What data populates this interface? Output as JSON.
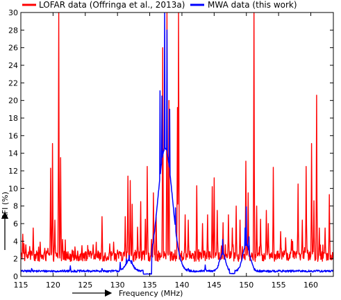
{
  "chart_data": {
    "type": "line",
    "title": "",
    "xlabel": "Frequency (MHz)",
    "ylabel": "RFI (%)",
    "xlim": [
      115,
      163.5
    ],
    "ylim": [
      0,
      30
    ],
    "grid": false,
    "legend_position": "top",
    "x_ticks": [
      115,
      120,
      125,
      130,
      135,
      140,
      145,
      150,
      155,
      160
    ],
    "y_ticks": [
      0,
      2,
      4,
      6,
      8,
      10,
      12,
      14,
      16,
      18,
      20,
      22,
      24,
      26,
      28,
      30
    ],
    "series": [
      {
        "name": "LOFAR data (Offringa et al., 2013a)",
        "color": "#ff0000",
        "baseline": 2.3,
        "noise": 0.6,
        "spikes": [
          {
            "x": 115.3,
            "y": 4.8
          },
          {
            "x": 115.8,
            "y": 3.6
          },
          {
            "x": 116.4,
            "y": 3.4
          },
          {
            "x": 116.9,
            "y": 5.5
          },
          {
            "x": 118.0,
            "y": 3.9
          },
          {
            "x": 119.2,
            "y": 3.2
          },
          {
            "x": 119.6,
            "y": 12.3
          },
          {
            "x": 119.9,
            "y": 15.1
          },
          {
            "x": 120.3,
            "y": 6.4
          },
          {
            "x": 120.9,
            "y": 30.0
          },
          {
            "x": 121.2,
            "y": 13.5
          },
          {
            "x": 121.5,
            "y": 4.2
          },
          {
            "x": 123.0,
            "y": 3.0
          },
          {
            "x": 124.5,
            "y": 3.5
          },
          {
            "x": 125.5,
            "y": 3.0
          },
          {
            "x": 126.2,
            "y": 3.6
          },
          {
            "x": 127.6,
            "y": 6.8
          },
          {
            "x": 128.8,
            "y": 3.7
          },
          {
            "x": 129.4,
            "y": 3.9
          },
          {
            "x": 130.0,
            "y": 3.0
          },
          {
            "x": 131.2,
            "y": 6.8
          },
          {
            "x": 131.6,
            "y": 11.4
          },
          {
            "x": 132.0,
            "y": 10.9
          },
          {
            "x": 132.3,
            "y": 8.2
          },
          {
            "x": 133.1,
            "y": 5.6
          },
          {
            "x": 133.6,
            "y": 8.5
          },
          {
            "x": 134.3,
            "y": 6.5
          },
          {
            "x": 134.6,
            "y": 12.5
          },
          {
            "x": 135.3,
            "y": 4.2
          },
          {
            "x": 135.6,
            "y": 9.5
          },
          {
            "x": 136.0,
            "y": 7.0
          },
          {
            "x": 137.0,
            "y": 26.0
          },
          {
            "x": 137.7,
            "y": 30.0
          },
          {
            "x": 138.0,
            "y": 20.0
          },
          {
            "x": 139.3,
            "y": 19.2
          },
          {
            "x": 139.5,
            "y": 30.0
          },
          {
            "x": 140.5,
            "y": 7.0
          },
          {
            "x": 141.0,
            "y": 6.4
          },
          {
            "x": 142.3,
            "y": 10.3
          },
          {
            "x": 143.2,
            "y": 6.0
          },
          {
            "x": 144.0,
            "y": 7.0
          },
          {
            "x": 144.7,
            "y": 10.2
          },
          {
            "x": 145.0,
            "y": 11.2
          },
          {
            "x": 145.5,
            "y": 7.5
          },
          {
            "x": 146.4,
            "y": 6.1
          },
          {
            "x": 147.2,
            "y": 7.0
          },
          {
            "x": 147.8,
            "y": 5.5
          },
          {
            "x": 148.4,
            "y": 8.0
          },
          {
            "x": 149.0,
            "y": 6.4
          },
          {
            "x": 149.9,
            "y": 13.1
          },
          {
            "x": 150.3,
            "y": 9.5
          },
          {
            "x": 151.2,
            "y": 30.0
          },
          {
            "x": 151.6,
            "y": 8.0
          },
          {
            "x": 152.2,
            "y": 6.5
          },
          {
            "x": 153.1,
            "y": 7.5
          },
          {
            "x": 153.4,
            "y": 6.0
          },
          {
            "x": 154.2,
            "y": 12.4
          },
          {
            "x": 155.3,
            "y": 5.1
          },
          {
            "x": 156.1,
            "y": 4.4
          },
          {
            "x": 157.0,
            "y": 4.2
          },
          {
            "x": 158.0,
            "y": 10.5
          },
          {
            "x": 158.7,
            "y": 6.4
          },
          {
            "x": 159.3,
            "y": 12.5
          },
          {
            "x": 160.1,
            "y": 15.1
          },
          {
            "x": 160.5,
            "y": 8.6
          },
          {
            "x": 160.9,
            "y": 20.6
          },
          {
            "x": 161.3,
            "y": 5.5
          },
          {
            "x": 162.2,
            "y": 5.5
          },
          {
            "x": 162.9,
            "y": 9.3
          }
        ]
      },
      {
        "name": "MWA data (this work)",
        "color": "#0000ff",
        "baseline": 0.6,
        "noise": 0.12,
        "spikes": [
          {
            "x": 116.7,
            "y": 0.9
          },
          {
            "x": 122.7,
            "y": 1.2
          },
          {
            "x": 127.6,
            "y": 0.9
          },
          {
            "x": 130.4,
            "y": 1.6
          },
          {
            "x": 131.4,
            "y": 2.0
          },
          {
            "x": 131.8,
            "y": 2.4
          },
          {
            "x": 132.2,
            "y": 1.8
          },
          {
            "x": 136.6,
            "y": 21.1
          },
          {
            "x": 136.9,
            "y": 20.5
          },
          {
            "x": 137.3,
            "y": 30.0
          },
          {
            "x": 137.7,
            "y": 28.0
          },
          {
            "x": 138.1,
            "y": 19.0
          },
          {
            "x": 139.0,
            "y": 7.8
          },
          {
            "x": 140.0,
            "y": 1.2
          },
          {
            "x": 141.0,
            "y": 0.9
          },
          {
            "x": 143.6,
            "y": 1.3
          },
          {
            "x": 146.3,
            "y": 4.2
          },
          {
            "x": 149.8,
            "y": 5.5
          },
          {
            "x": 150.0,
            "y": 7.9
          },
          {
            "x": 150.4,
            "y": 4.5
          }
        ],
        "bumps": [
          {
            "x": 131.8,
            "width": 1.1,
            "height": 1.2
          },
          {
            "x": 137.4,
            "width": 2.2,
            "height": 14.0
          },
          {
            "x": 146.3,
            "width": 0.9,
            "height": 2.0
          },
          {
            "x": 150.0,
            "width": 1.1,
            "height": 3.0
          }
        ],
        "dips": [
          {
            "from": 134.0,
            "to": 135.3,
            "y": 0.25
          },
          {
            "from": 147.4,
            "to": 148.2,
            "y": 0.3
          }
        ]
      }
    ]
  }
}
